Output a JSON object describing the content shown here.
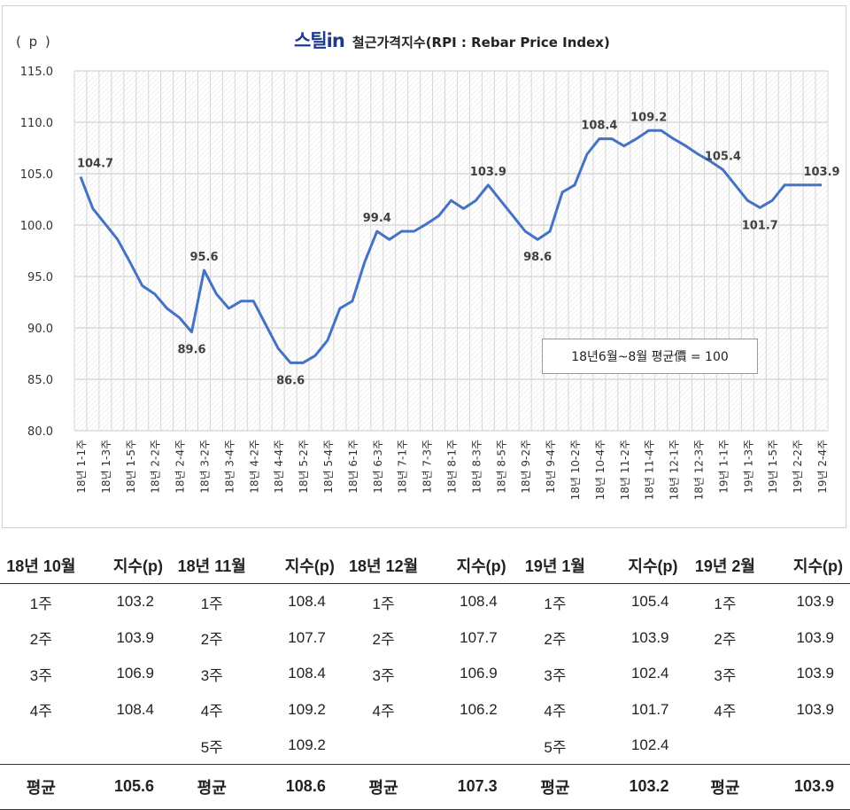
{
  "chart_data": {
    "type": "line",
    "title": "철근가격지수(RPI : Rebar Price Index)",
    "logo": "스틸in",
    "ylabel": "( p )",
    "ylim": [
      80,
      115
    ],
    "yticks": [
      "80.0",
      "85.0",
      "90.0",
      "95.0",
      "100.0",
      "105.0",
      "110.0",
      "115.0"
    ],
    "grid": true,
    "legend": "none",
    "line_color": "#4472c4",
    "categories": [
      "18년 1-1주",
      "18년 1-2주",
      "18년 1-3주",
      "18년 1-4주",
      "18년 1-5주",
      "18년 2-1주",
      "18년 2-2주",
      "18년 2-3주",
      "18년 2-4주",
      "18년 3-1주",
      "18년 3-2주",
      "18년 3-3주",
      "18년 3-4주",
      "18년 4-1주",
      "18년 4-2주",
      "18년 4-3주",
      "18년 4-4주",
      "18년 5-1주",
      "18년 5-2주",
      "18년 5-3주",
      "18년 5-4주",
      "18년 5-5주",
      "18년 6-1주",
      "18년 6-2주",
      "18년 6-3주",
      "18년 6-4주",
      "18년 7-1주",
      "18년 7-2주",
      "18년 7-3주",
      "18년 7-4주",
      "18년 8-1주",
      "18년 8-2주",
      "18년 8-3주",
      "18년 8-4주",
      "18년 8-5주",
      "18년 9-1주",
      "18년 9-2주",
      "18년 9-3주",
      "18년 9-4주",
      "18년 10-1주",
      "18년 10-2주",
      "18년 10-3주",
      "18년 10-4주",
      "18년 11-1주",
      "18년 11-2주",
      "18년 11-3주",
      "18년 11-4주",
      "18년 11-5주",
      "18년 12-1주",
      "18년 12-2주",
      "18년 12-3주",
      "18년 12-4주",
      "19년 1-1주",
      "19년 1-2주",
      "19년 1-3주",
      "19년 1-4주",
      "19년 1-5주",
      "19년 2-1주",
      "19년 2-2주",
      "19년 2-3주",
      "19년 2-4주"
    ],
    "tick_label_every": 2,
    "values": [
      104.7,
      101.6,
      100.1,
      98.6,
      96.4,
      94.1,
      93.3,
      91.9,
      91.0,
      89.6,
      95.6,
      93.3,
      91.9,
      92.6,
      92.6,
      90.3,
      88.0,
      86.6,
      86.6,
      87.3,
      88.8,
      91.9,
      92.6,
      96.4,
      99.4,
      98.6,
      99.4,
      99.4,
      100.1,
      100.9,
      102.4,
      101.6,
      102.4,
      103.9,
      102.4,
      100.9,
      99.4,
      98.6,
      99.4,
      103.2,
      103.9,
      106.9,
      108.4,
      108.4,
      107.7,
      108.4,
      109.2,
      109.2,
      108.4,
      107.7,
      106.9,
      106.2,
      105.4,
      103.9,
      102.4,
      101.7,
      102.4,
      103.9,
      103.9,
      103.9,
      103.9
    ],
    "data_labels": [
      {
        "index": 0,
        "text": "104.7",
        "position": "above"
      },
      {
        "index": 9,
        "text": "89.6",
        "position": "below"
      },
      {
        "index": 10,
        "text": "95.6",
        "position": "above"
      },
      {
        "index": 17,
        "text": "86.6",
        "position": "below"
      },
      {
        "index": 24,
        "text": "99.4",
        "position": "above"
      },
      {
        "index": 33,
        "text": "103.9",
        "position": "above"
      },
      {
        "index": 37,
        "text": "98.6",
        "position": "below"
      },
      {
        "index": 42,
        "text": "108.4",
        "position": "above"
      },
      {
        "index": 46,
        "text": "109.2",
        "position": "above"
      },
      {
        "index": 52,
        "text": "105.4",
        "position": "above"
      },
      {
        "index": 55,
        "text": "101.7",
        "position": "below"
      },
      {
        "index": 60,
        "text": "103.9",
        "position": "above"
      }
    ],
    "annotation": "18년6월~8월 평균價 = 100"
  },
  "table": {
    "headers": [
      "18년 10월",
      "지수(p)",
      "18년 11월",
      "지수(p)",
      "18년 12월",
      "지수(p)",
      "19년 1월",
      "지수(p)",
      "19년 2월",
      "지수(p)"
    ],
    "rows": [
      [
        "1주",
        "103.2",
        "1주",
        "108.4",
        "1주",
        "108.4",
        "1주",
        "105.4",
        "1주",
        "103.9"
      ],
      [
        "2주",
        "103.9",
        "2주",
        "107.7",
        "2주",
        "107.7",
        "2주",
        "103.9",
        "2주",
        "103.9"
      ],
      [
        "3주",
        "106.9",
        "3주",
        "108.4",
        "3주",
        "106.9",
        "3주",
        "102.4",
        "3주",
        "103.9"
      ],
      [
        "4주",
        "108.4",
        "4주",
        "109.2",
        "4주",
        "106.2",
        "4주",
        "101.7",
        "4주",
        "103.9"
      ],
      [
        "",
        "",
        "5주",
        "109.2",
        "",
        "",
        "5주",
        "102.4",
        "",
        ""
      ]
    ],
    "average": [
      "평균",
      "105.6",
      "평균",
      "108.6",
      "평균",
      "107.3",
      "평균",
      "103.2",
      "평균",
      "103.9"
    ]
  }
}
